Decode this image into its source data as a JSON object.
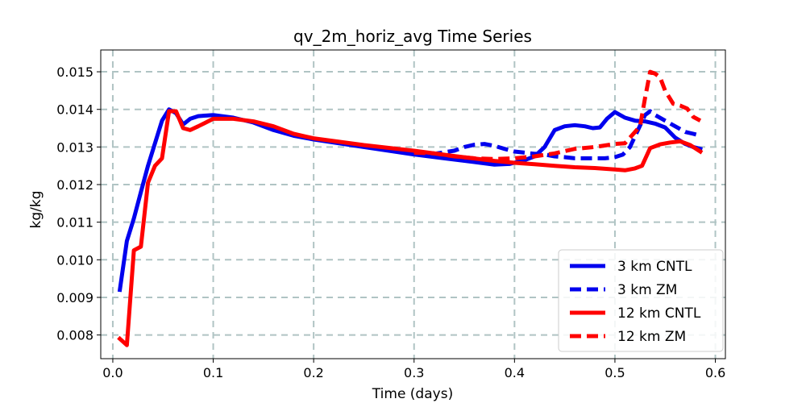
{
  "chart_data": {
    "type": "line",
    "title": "qv_2m_horiz_avg Time Series",
    "xlabel": "Time (days)",
    "ylabel": "kg/kg",
    "xlim": [
      -0.012,
      0.61
    ],
    "ylim": [
      0.00737,
      0.01558
    ],
    "x_ticks": [
      {
        "value": 0.0,
        "label": "0.0"
      },
      {
        "value": 0.1,
        "label": "0.1"
      },
      {
        "value": 0.2,
        "label": "0.2"
      },
      {
        "value": 0.3,
        "label": "0.3"
      },
      {
        "value": 0.4,
        "label": "0.4"
      },
      {
        "value": 0.5,
        "label": "0.5"
      },
      {
        "value": 0.6,
        "label": "0.6"
      }
    ],
    "y_ticks": [
      {
        "value": 0.008,
        "label": "0.008"
      },
      {
        "value": 0.009,
        "label": "0.009"
      },
      {
        "value": 0.01,
        "label": "0.010"
      },
      {
        "value": 0.011,
        "label": "0.011"
      },
      {
        "value": 0.012,
        "label": "0.012"
      },
      {
        "value": 0.013,
        "label": "0.013"
      },
      {
        "value": 0.014,
        "label": "0.014"
      },
      {
        "value": 0.015,
        "label": "0.015"
      }
    ],
    "grid": true,
    "legend_position": "lower right",
    "series": [
      {
        "name": "3 km CNTL",
        "color": "#0000ee",
        "style": "solid",
        "points": [
          [
            0.007,
            0.0092
          ],
          [
            0.014,
            0.0105
          ],
          [
            0.021,
            0.0111
          ],
          [
            0.028,
            0.0118
          ],
          [
            0.035,
            0.0125
          ],
          [
            0.042,
            0.0131
          ],
          [
            0.049,
            0.0137
          ],
          [
            0.056,
            0.014
          ],
          [
            0.063,
            0.0139
          ],
          [
            0.07,
            0.0136
          ],
          [
            0.077,
            0.01375
          ],
          [
            0.085,
            0.01382
          ],
          [
            0.1,
            0.01385
          ],
          [
            0.12,
            0.01378
          ],
          [
            0.14,
            0.01365
          ],
          [
            0.16,
            0.01345
          ],
          [
            0.18,
            0.0133
          ],
          [
            0.2,
            0.0132
          ],
          [
            0.25,
            0.013
          ],
          [
            0.3,
            0.0128
          ],
          [
            0.33,
            0.0127
          ],
          [
            0.36,
            0.0126
          ],
          [
            0.38,
            0.01253
          ],
          [
            0.395,
            0.01255
          ],
          [
            0.41,
            0.01265
          ],
          [
            0.42,
            0.01275
          ],
          [
            0.43,
            0.013
          ],
          [
            0.44,
            0.01345
          ],
          [
            0.45,
            0.01355
          ],
          [
            0.46,
            0.01358
          ],
          [
            0.47,
            0.01355
          ],
          [
            0.478,
            0.0135
          ],
          [
            0.485,
            0.01352
          ],
          [
            0.492,
            0.01375
          ],
          [
            0.5,
            0.01393
          ],
          [
            0.51,
            0.01378
          ],
          [
            0.52,
            0.0137
          ],
          [
            0.53,
            0.01368
          ],
          [
            0.54,
            0.01362
          ],
          [
            0.55,
            0.01352
          ],
          [
            0.56,
            0.01325
          ],
          [
            0.57,
            0.01308
          ],
          [
            0.578,
            0.013
          ],
          [
            0.585,
            0.01295
          ]
        ]
      },
      {
        "name": "3 km ZM",
        "color": "#0000ee",
        "style": "dashed",
        "points": [
          [
            0.3,
            0.01282
          ],
          [
            0.32,
            0.01282
          ],
          [
            0.34,
            0.0129
          ],
          [
            0.35,
            0.013
          ],
          [
            0.36,
            0.01306
          ],
          [
            0.37,
            0.01308
          ],
          [
            0.38,
            0.01303
          ],
          [
            0.39,
            0.01295
          ],
          [
            0.4,
            0.01288
          ],
          [
            0.41,
            0.01285
          ],
          [
            0.42,
            0.01282
          ],
          [
            0.43,
            0.0128
          ],
          [
            0.44,
            0.01275
          ],
          [
            0.45,
            0.01273
          ],
          [
            0.46,
            0.0127
          ],
          [
            0.47,
            0.0127
          ],
          [
            0.48,
            0.0127
          ],
          [
            0.49,
            0.0127
          ],
          [
            0.5,
            0.01273
          ],
          [
            0.508,
            0.0128
          ],
          [
            0.515,
            0.013
          ],
          [
            0.522,
            0.0134
          ],
          [
            0.53,
            0.01385
          ],
          [
            0.535,
            0.01395
          ],
          [
            0.54,
            0.01385
          ],
          [
            0.55,
            0.0137
          ],
          [
            0.56,
            0.01355
          ],
          [
            0.57,
            0.0134
          ],
          [
            0.578,
            0.01335
          ],
          [
            0.585,
            0.0133
          ]
        ]
      },
      {
        "name": "12 km CNTL",
        "color": "#ff0000",
        "style": "solid",
        "points": [
          [
            0.007,
            0.0079
          ],
          [
            0.014,
            0.00773
          ],
          [
            0.021,
            0.01025
          ],
          [
            0.028,
            0.01035
          ],
          [
            0.035,
            0.01205
          ],
          [
            0.042,
            0.0125
          ],
          [
            0.049,
            0.0127
          ],
          [
            0.056,
            0.01395
          ],
          [
            0.063,
            0.01395
          ],
          [
            0.07,
            0.0135
          ],
          [
            0.077,
            0.01345
          ],
          [
            0.085,
            0.01355
          ],
          [
            0.1,
            0.01375
          ],
          [
            0.12,
            0.01375
          ],
          [
            0.14,
            0.01368
          ],
          [
            0.16,
            0.01355
          ],
          [
            0.18,
            0.01335
          ],
          [
            0.2,
            0.01323
          ],
          [
            0.25,
            0.01305
          ],
          [
            0.3,
            0.0129
          ],
          [
            0.34,
            0.01276
          ],
          [
            0.38,
            0.01263
          ],
          [
            0.4,
            0.01258
          ],
          [
            0.42,
            0.01254
          ],
          [
            0.44,
            0.0125
          ],
          [
            0.46,
            0.01246
          ],
          [
            0.48,
            0.01244
          ],
          [
            0.5,
            0.0124
          ],
          [
            0.51,
            0.01238
          ],
          [
            0.52,
            0.01243
          ],
          [
            0.527,
            0.0125
          ],
          [
            0.535,
            0.01297
          ],
          [
            0.545,
            0.01307
          ],
          [
            0.555,
            0.01312
          ],
          [
            0.565,
            0.01315
          ],
          [
            0.575,
            0.01305
          ],
          [
            0.585,
            0.01288
          ]
        ]
      },
      {
        "name": "12 km ZM",
        "color": "#ff0000",
        "style": "dashed",
        "points": [
          [
            0.3,
            0.01285
          ],
          [
            0.32,
            0.01283
          ],
          [
            0.34,
            0.01275
          ],
          [
            0.36,
            0.0127
          ],
          [
            0.38,
            0.01268
          ],
          [
            0.4,
            0.0127
          ],
          [
            0.42,
            0.01275
          ],
          [
            0.44,
            0.01283
          ],
          [
            0.46,
            0.01295
          ],
          [
            0.48,
            0.013
          ],
          [
            0.5,
            0.01308
          ],
          [
            0.51,
            0.0131
          ],
          [
            0.515,
            0.01325
          ],
          [
            0.52,
            0.0134
          ],
          [
            0.525,
            0.01355
          ],
          [
            0.53,
            0.0143
          ],
          [
            0.535,
            0.015
          ],
          [
            0.54,
            0.01495
          ],
          [
            0.545,
            0.01485
          ],
          [
            0.55,
            0.0145
          ],
          [
            0.558,
            0.01415
          ],
          [
            0.565,
            0.0141
          ],
          [
            0.572,
            0.01402
          ],
          [
            0.578,
            0.0138
          ],
          [
            0.585,
            0.0137
          ]
        ]
      }
    ]
  }
}
